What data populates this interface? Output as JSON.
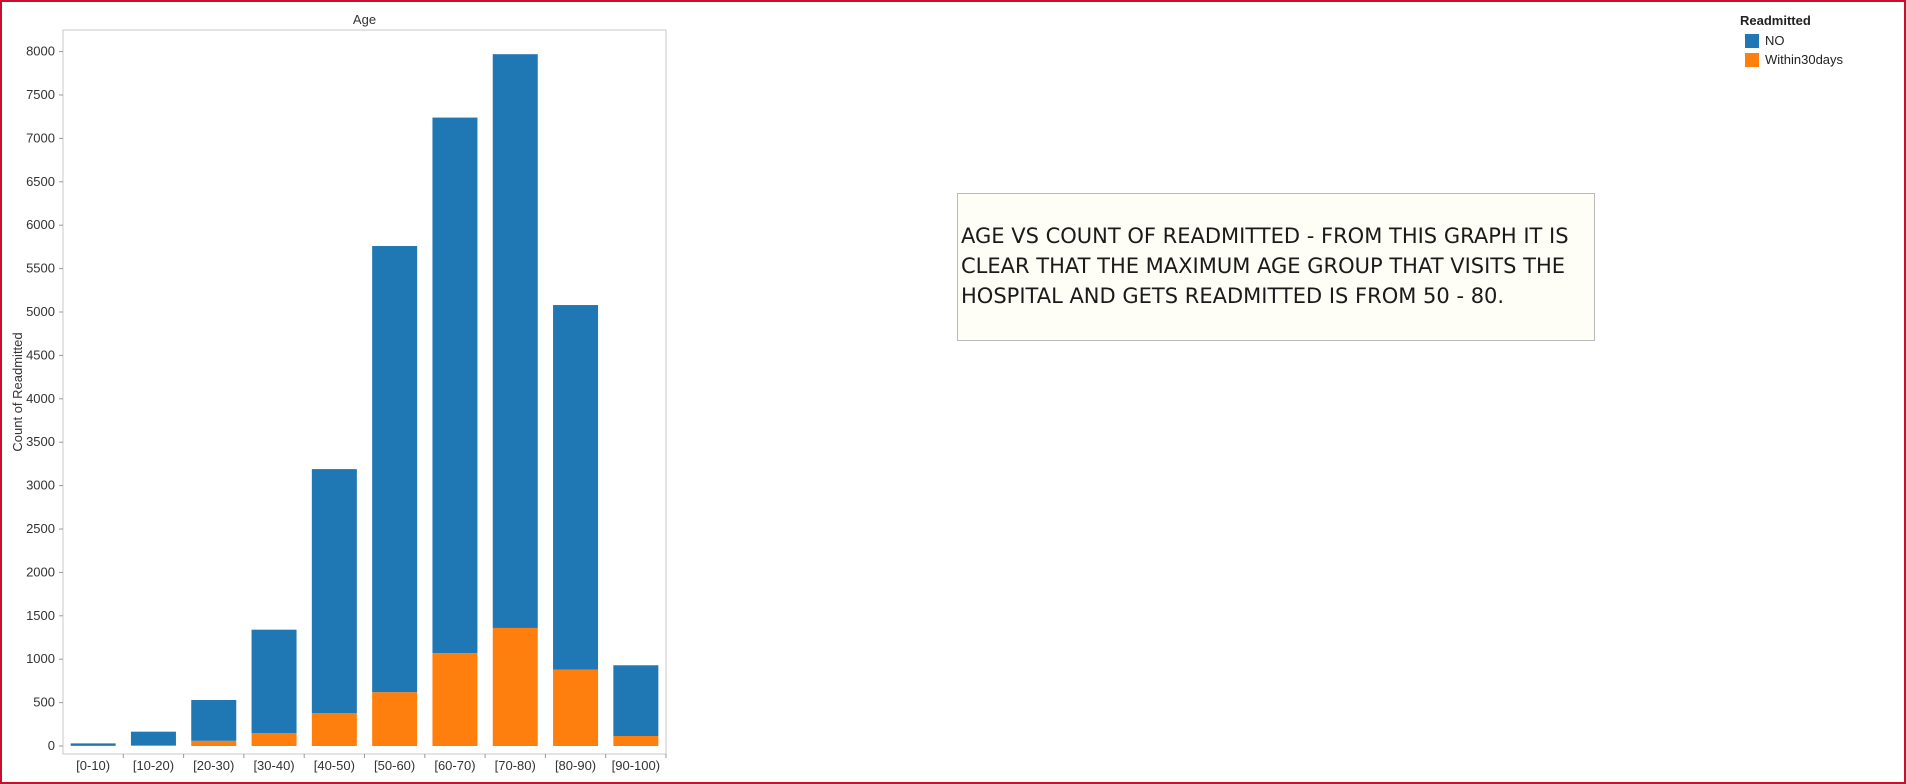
{
  "chart_data": {
    "type": "bar",
    "stacked": true,
    "title": "Age",
    "xlabel": "",
    "ylabel": "Count of Readmitted",
    "categories": [
      "[0-10)",
      "[10-20)",
      "[20-30)",
      "[30-40)",
      "[40-50)",
      "[50-60)",
      "[60-70)",
      "[70-80)",
      "[80-90)",
      "[90-100)"
    ],
    "series": [
      {
        "name": "Within30days",
        "color": "#ff7f0e",
        "values": [
          3,
          10,
          60,
          150,
          380,
          620,
          1070,
          1360,
          880,
          115
        ]
      },
      {
        "name": "NO",
        "color": "#1f77b4",
        "values": [
          27,
          155,
          470,
          1190,
          2810,
          5140,
          6170,
          6610,
          4200,
          815
        ]
      }
    ],
    "yticks": [
      0,
      500,
      1000,
      1500,
      2000,
      2500,
      3000,
      3500,
      4000,
      4500,
      5000,
      5500,
      6000,
      6500,
      7000,
      7500,
      8000
    ],
    "ylim": [
      0,
      8350
    ],
    "grid": false,
    "legend_position": "top-right"
  },
  "legend": {
    "title": "Readmitted",
    "items": [
      {
        "label": "NO",
        "color": "#1f77b4"
      },
      {
        "label": "Within30days",
        "color": "#ff7f0e"
      }
    ]
  },
  "annotation": {
    "text": "AGE VS COUNT OF READMITTED - FROM THIS GRAPH IT IS CLEAR THAT THE MAXIMUM AGE GROUP THAT VISITS THE HOSPITAL AND GETS READMITTED IS FROM 50 - 80."
  }
}
